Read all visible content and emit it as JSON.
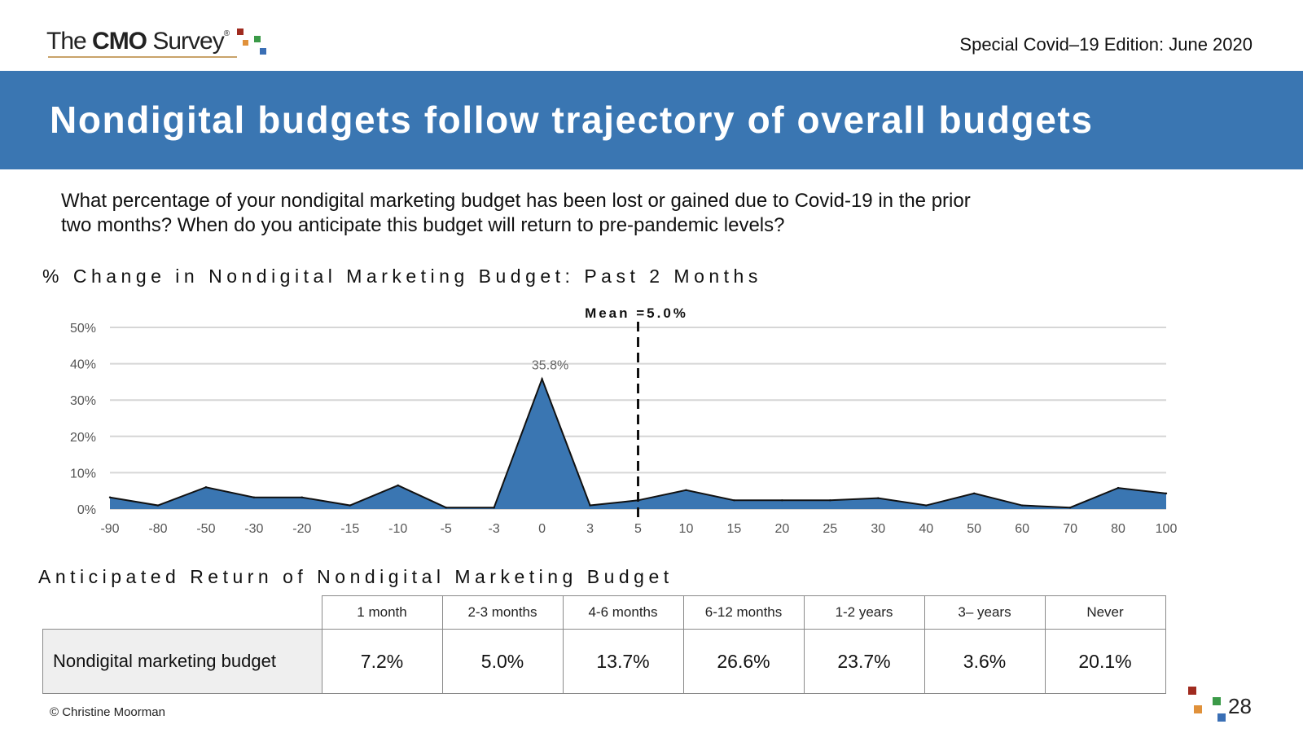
{
  "header": {
    "logo": {
      "pre": "The ",
      "bold": "CMO",
      "post": " Survey",
      "reg": "®"
    },
    "edition": "Special Covid–19 Edition: June 2020"
  },
  "slide": {
    "title": "Nondigital budgets follow trajectory of overall budgets",
    "question": "What percentage of your nondigital marketing budget has been lost or gained due to Covid-19 in the prior two months? When do you anticipate this budget will return to pre-pandemic levels?"
  },
  "chart_data": {
    "type": "area",
    "title": "% Change in Nondigital Marketing Budget: Past 2 Months",
    "categories": [
      "-90",
      "-80",
      "-50",
      "-30",
      "-20",
      "-15",
      "-10",
      "-5",
      "-3",
      "0",
      "3",
      "5",
      "10",
      "15",
      "20",
      "25",
      "30",
      "40",
      "50",
      "60",
      "70",
      "80",
      "100"
    ],
    "values": [
      3.2,
      1.0,
      6.0,
      3.2,
      3.2,
      1.0,
      6.5,
      0.4,
      0.4,
      35.8,
      1.0,
      2.4,
      5.2,
      2.4,
      2.4,
      2.4,
      3.0,
      1.0,
      4.3,
      1.0,
      0.4,
      5.8,
      4.3
    ],
    "data_labels": [
      {
        "category": "0",
        "label": "35.8%"
      }
    ],
    "yticks": [
      "0%",
      "10%",
      "20%",
      "30%",
      "40%",
      "50%"
    ],
    "ylim": [
      0,
      50
    ],
    "mean": {
      "label": "Mean  =5.0%",
      "category": "5"
    },
    "series_color": "#3a76b2"
  },
  "table": {
    "title": "Anticipated Return of Nondigital Marketing Budget",
    "headers": [
      "1 month",
      "2-3 months",
      "4-6 months",
      "6-12 months",
      "1-2 years",
      "3– years",
      "Never"
    ],
    "row_label": "Nondigital marketing budget",
    "values": [
      "7.2%",
      "5.0%",
      "13.7%",
      "26.6%",
      "23.7%",
      "3.6%",
      "20.1%"
    ]
  },
  "footer": {
    "copyright": "© Christine Moorman",
    "page_number": "28"
  },
  "colors": {
    "banner": "#3a76b2",
    "logo_squares": [
      "#a02b1f",
      "#e0913a",
      "#3b9a48",
      "#3a6fb5"
    ]
  }
}
